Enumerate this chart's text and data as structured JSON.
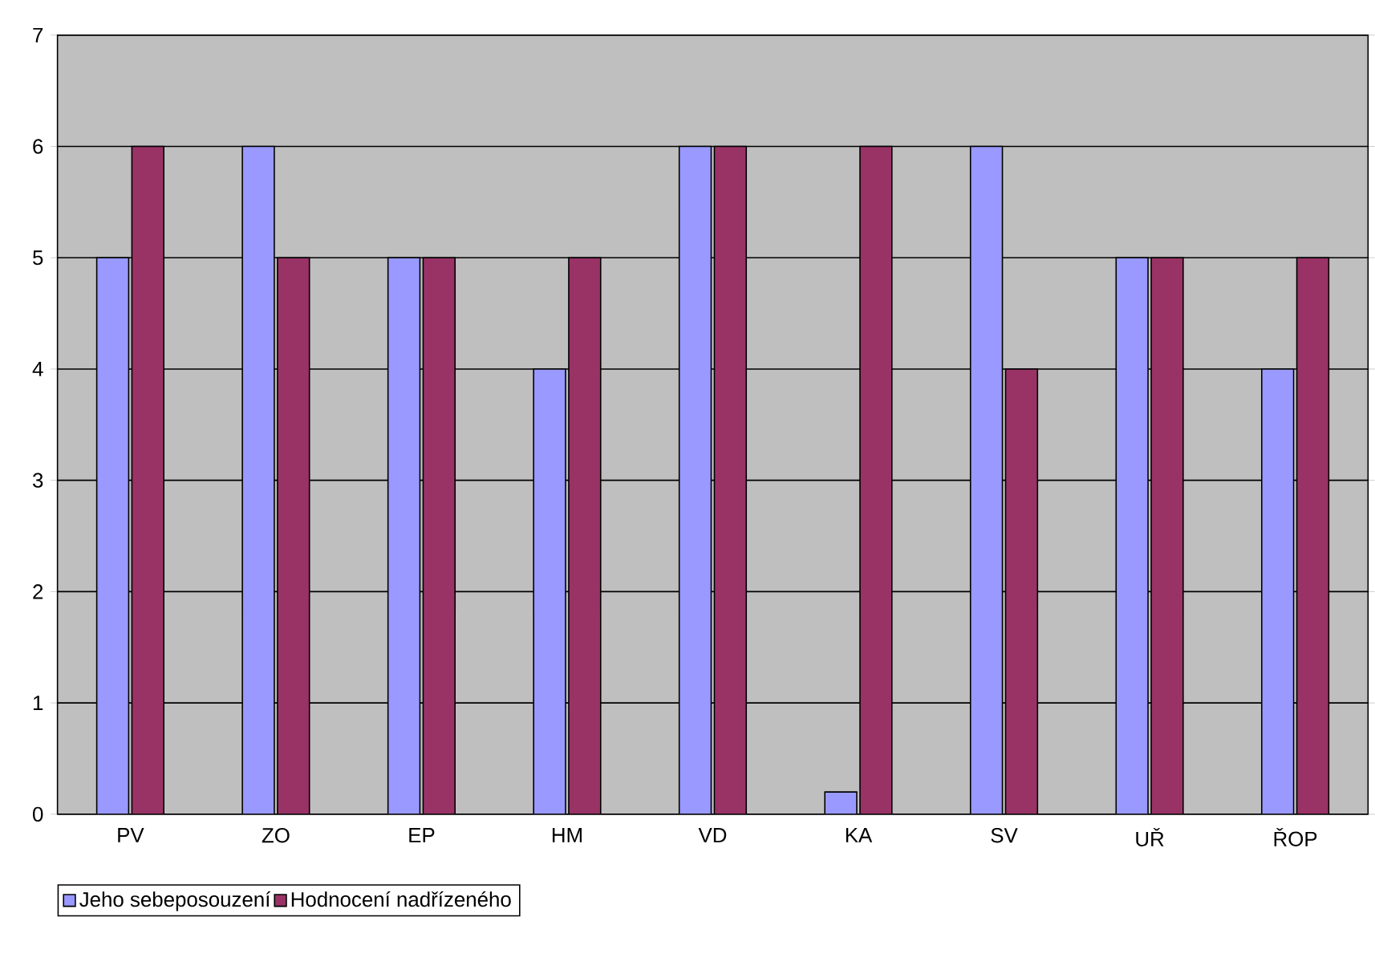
{
  "chart_data": {
    "type": "bar",
    "categories": [
      "PV",
      "ZO",
      "EP",
      "HM",
      "VD",
      "KA",
      "SV",
      "UŘ",
      "ŘOP"
    ],
    "series": [
      {
        "name": "Jeho sebeposouzení",
        "color": "#9999ff",
        "values": [
          5,
          6,
          5,
          4,
          6,
          0.2,
          6,
          5,
          4
        ]
      },
      {
        "name": "Hodnocení nadřízeného",
        "color": "#993366",
        "values": [
          6,
          5,
          5,
          5,
          6,
          6,
          4,
          5,
          5
        ]
      }
    ],
    "ylim": [
      0,
      7
    ],
    "yticks": [
      0,
      1,
      2,
      3,
      4,
      5,
      6,
      7
    ],
    "grid": "y",
    "legend": "bottom left"
  }
}
